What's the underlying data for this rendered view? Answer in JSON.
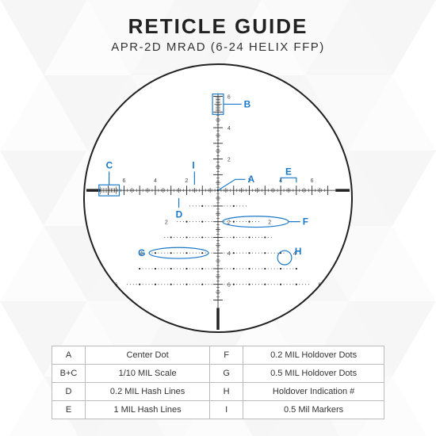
{
  "title": "RETICLE GUIDE",
  "subtitle": "APR-2D MRAD (6-24 HELIX FFP)",
  "colors": {
    "annotation": "#1978c8",
    "reticle": "#222222",
    "border": "#bbbbbb",
    "text": "#333333",
    "tri1": "#d8d8d8",
    "tri2": "#f0f0f0",
    "tri3": "#e8e8e8"
  },
  "legend": [
    {
      "k": "A",
      "v": "Center Dot"
    },
    {
      "k": "B+C",
      "v": "1/10 MIL Scale"
    },
    {
      "k": "D",
      "v": "0.2 MIL Hash Lines"
    },
    {
      "k": "E",
      "v": "1 MIL Hash Lines"
    },
    {
      "k": "F",
      "v": "0.2 MIL Holdover Dots"
    },
    {
      "k": "G",
      "v": "0.5 MIL Holdover Dots"
    },
    {
      "k": "H",
      "v": "Holdover Indication #"
    },
    {
      "k": "I",
      "v": "0.5 Mil Markers"
    }
  ],
  "annotations": [
    "A",
    "B",
    "C",
    "D",
    "E",
    "F",
    "G",
    "H",
    "I"
  ]
}
